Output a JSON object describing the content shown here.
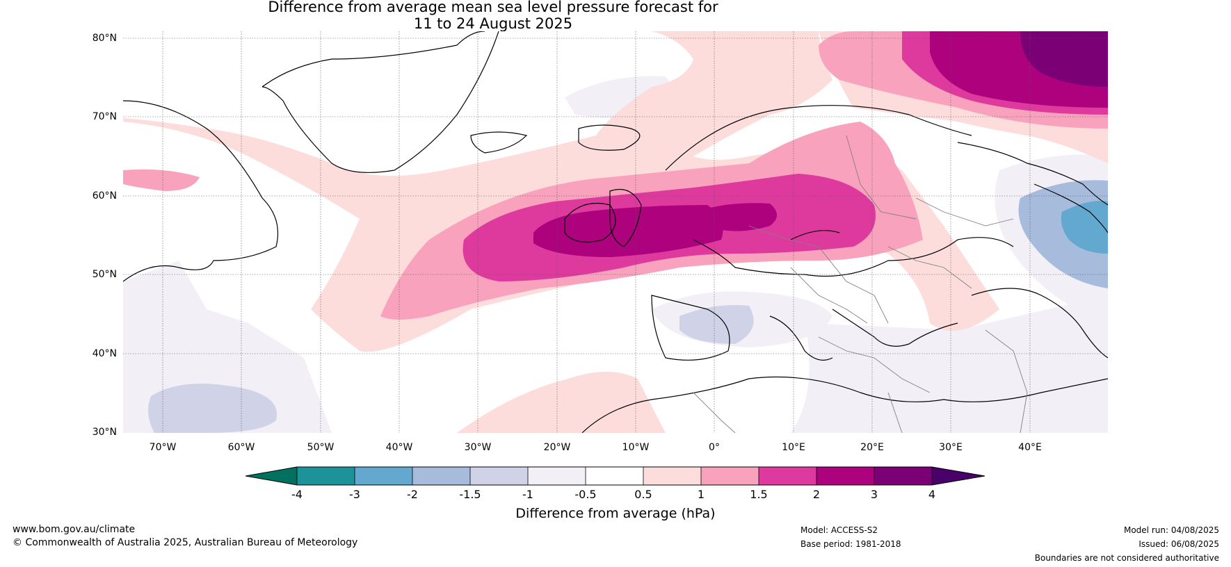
{
  "title": {
    "line1": "Difference from average mean sea level pressure forecast for",
    "line2": "11 to 24 August 2025"
  },
  "map": {
    "lat_labels": [
      "80°N",
      "70°N",
      "60°N",
      "50°N",
      "40°N",
      "30°N"
    ],
    "lon_labels": [
      "70°W",
      "60°W",
      "50°W",
      "40°W",
      "30°W",
      "20°W",
      "10°W",
      "0°",
      "10°E",
      "20°E",
      "30°E",
      "40°E"
    ]
  },
  "colorbar": {
    "label": "Difference from average (hPa)",
    "ticks": [
      "-4",
      "-3",
      "-2",
      "-1.5",
      "-1",
      "-0.5",
      "0.5",
      "1",
      "1.5",
      "2",
      "3",
      "4"
    ],
    "colors": {
      "below_min": "#01715f",
      "m4_m3": "#1b9399",
      "m3_m2": "#63a9cf",
      "m2_m15": "#a7bbdc",
      "m15_m1": "#d0d2e7",
      "m1_m05": "#f2eff7",
      "m05_05": "#ffffff",
      "p05_1": "#fddcdc",
      "p1_15": "#f8a2bd",
      "p15_2": "#de3a9e",
      "p2_3": "#ad017e",
      "p3_4": "#7b0075",
      "above_max": "#4a006b"
    }
  },
  "footer": {
    "url": "www.bom.gov.au/climate",
    "copyright": "© Commonwealth of Australia 2025, Australian Bureau of Meteorology",
    "model": "Model: ACCESS-S2",
    "base_period": "Base period: 1981-2018",
    "model_run": "Model run: 04/08/2025",
    "issued": "Issued: 06/08/2025",
    "boundaries": "Boundaries are not considered authoritative"
  }
}
